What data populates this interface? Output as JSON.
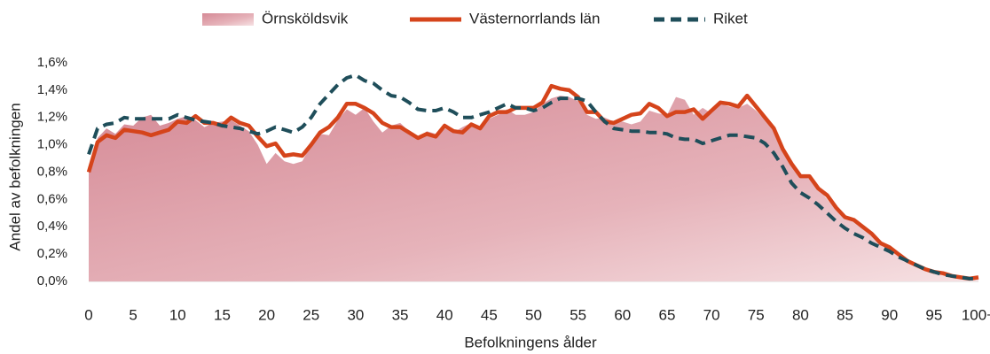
{
  "chart_data": {
    "type": "line",
    "y_label": "Andel av befolkningen",
    "x_label": "Befolkningens ålder",
    "categories": [
      "0",
      null,
      null,
      null,
      null,
      "5",
      null,
      null,
      null,
      null,
      "10",
      null,
      null,
      null,
      null,
      "15",
      null,
      null,
      null,
      null,
      "20",
      null,
      null,
      null,
      null,
      "25",
      null,
      null,
      null,
      null,
      "30",
      null,
      null,
      null,
      null,
      "35",
      null,
      null,
      null,
      null,
      "40",
      null,
      null,
      null,
      null,
      "45",
      null,
      null,
      null,
      null,
      "50",
      null,
      null,
      null,
      null,
      "55",
      null,
      null,
      null,
      null,
      "60",
      null,
      null,
      null,
      null,
      "65",
      null,
      null,
      null,
      null,
      "70",
      null,
      null,
      null,
      null,
      "75",
      null,
      null,
      null,
      null,
      "80",
      null,
      null,
      null,
      null,
      "85",
      null,
      null,
      null,
      null,
      "90",
      null,
      null,
      null,
      null,
      "95",
      null,
      null,
      null,
      null,
      "100+"
    ],
    "ylim": [
      0,
      1.6
    ],
    "yticks": [
      {
        "value": 0,
        "label": "0,0%"
      },
      {
        "value": 0.2,
        "label": "0,2%"
      },
      {
        "value": 0.4,
        "label": "0,4%"
      },
      {
        "value": 0.6,
        "label": "0,6%"
      },
      {
        "value": 0.8,
        "label": "0,8%"
      },
      {
        "value": 1.0,
        "label": "1,0%"
      },
      {
        "value": 1.2,
        "label": "1,2%"
      },
      {
        "value": 1.4,
        "label": "1,4%"
      },
      {
        "value": 1.6,
        "label": "1,6%"
      }
    ],
    "series": [
      {
        "name": "Örnsköldsvik",
        "type": "area",
        "color": "#d9919c",
        "values": [
          0.82,
          1.05,
          1.12,
          1.08,
          1.15,
          1.14,
          1.2,
          1.22,
          1.14,
          1.16,
          1.19,
          1.21,
          1.18,
          1.13,
          1.16,
          1.17,
          1.18,
          1.14,
          1.1,
          1.0,
          0.86,
          0.94,
          0.88,
          0.86,
          0.88,
          1.0,
          1.08,
          1.07,
          1.18,
          1.26,
          1.22,
          1.27,
          1.17,
          1.09,
          1.14,
          1.16,
          1.1,
          1.04,
          1.1,
          1.08,
          1.12,
          1.09,
          1.13,
          1.16,
          1.13,
          1.19,
          1.22,
          1.26,
          1.22,
          1.22,
          1.24,
          1.3,
          1.34,
          1.36,
          1.35,
          1.32,
          1.22,
          1.19,
          1.2,
          1.17,
          1.17,
          1.15,
          1.17,
          1.25,
          1.23,
          1.22,
          1.35,
          1.33,
          1.22,
          1.27,
          1.23,
          1.3,
          1.28,
          1.27,
          1.3,
          1.25,
          1.18,
          1.1,
          0.95,
          0.85,
          0.78,
          0.75,
          0.68,
          0.6,
          0.52,
          0.46,
          0.44,
          0.4,
          0.34,
          0.28,
          0.24,
          0.19,
          0.15,
          0.11,
          0.08,
          0.06,
          0.05,
          0.04,
          0.03,
          0.02,
          0.02
        ]
      },
      {
        "name": "Västernorrlands län",
        "type": "line",
        "color": "#d5441b",
        "values": [
          0.8,
          1.02,
          1.07,
          1.05,
          1.11,
          1.1,
          1.09,
          1.07,
          1.09,
          1.11,
          1.17,
          1.16,
          1.21,
          1.16,
          1.16,
          1.14,
          1.2,
          1.16,
          1.14,
          1.06,
          0.99,
          1.01,
          0.92,
          0.93,
          0.92,
          1.0,
          1.09,
          1.13,
          1.2,
          1.3,
          1.3,
          1.27,
          1.23,
          1.16,
          1.13,
          1.13,
          1.09,
          1.05,
          1.08,
          1.06,
          1.14,
          1.1,
          1.09,
          1.15,
          1.12,
          1.21,
          1.24,
          1.24,
          1.27,
          1.27,
          1.27,
          1.31,
          1.43,
          1.41,
          1.4,
          1.35,
          1.24,
          1.24,
          1.17,
          1.16,
          1.19,
          1.22,
          1.23,
          1.3,
          1.27,
          1.21,
          1.24,
          1.24,
          1.26,
          1.19,
          1.25,
          1.31,
          1.3,
          1.28,
          1.36,
          1.28,
          1.2,
          1.12,
          0.97,
          0.86,
          0.77,
          0.77,
          0.68,
          0.63,
          0.54,
          0.47,
          0.45,
          0.4,
          0.35,
          0.28,
          0.25,
          0.2,
          0.15,
          0.12,
          0.09,
          0.07,
          0.06,
          0.04,
          0.03,
          0.02,
          0.03
        ]
      },
      {
        "name": "Riket",
        "type": "line",
        "dashed": true,
        "color": "#1f4e5a",
        "values": [
          0.93,
          1.12,
          1.15,
          1.16,
          1.2,
          1.19,
          1.19,
          1.19,
          1.19,
          1.19,
          1.22,
          1.2,
          1.18,
          1.17,
          1.16,
          1.14,
          1.13,
          1.12,
          1.1,
          1.08,
          1.1,
          1.13,
          1.11,
          1.09,
          1.13,
          1.2,
          1.3,
          1.37,
          1.44,
          1.49,
          1.51,
          1.47,
          1.45,
          1.4,
          1.36,
          1.35,
          1.31,
          1.26,
          1.25,
          1.25,
          1.27,
          1.24,
          1.2,
          1.2,
          1.22,
          1.24,
          1.27,
          1.3,
          1.27,
          1.27,
          1.25,
          1.27,
          1.31,
          1.34,
          1.34,
          1.34,
          1.32,
          1.24,
          1.17,
          1.12,
          1.11,
          1.1,
          1.1,
          1.09,
          1.09,
          1.08,
          1.05,
          1.04,
          1.04,
          1.01,
          1.03,
          1.05,
          1.07,
          1.07,
          1.06,
          1.05,
          1.01,
          0.94,
          0.84,
          0.72,
          0.65,
          0.61,
          0.56,
          0.5,
          0.44,
          0.39,
          0.35,
          0.32,
          0.28,
          0.25,
          0.22,
          0.18,
          0.15,
          0.12,
          0.09,
          0.07,
          0.05,
          0.04,
          0.03,
          0.02,
          0.02
        ]
      }
    ]
  }
}
